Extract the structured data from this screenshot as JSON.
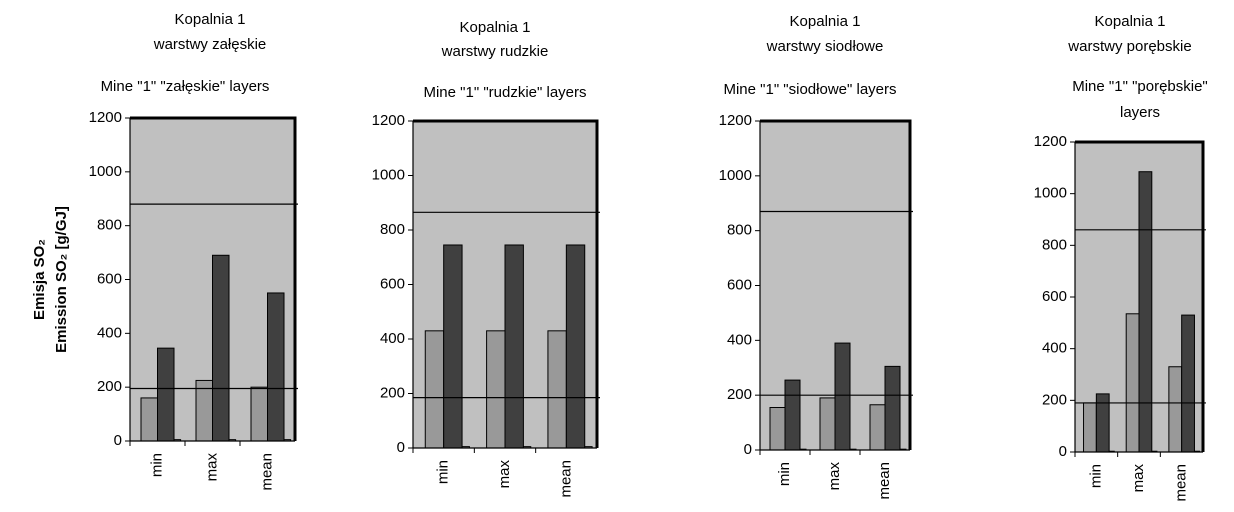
{
  "chart_data": [
    {
      "type": "bar",
      "title": "Kopalnia 1",
      "subtitle": "warstwy załęskie",
      "caption": [
        "Mine \"1\" \"załęskie\"   layers"
      ],
      "ylabel": [
        "Emisja SO₂",
        "Emission SO₂ [g/GJ]"
      ],
      "categories": [
        "min",
        "max",
        "mean"
      ],
      "series": [
        {
          "color": "#999999",
          "values": [
            160,
            225,
            200
          ]
        },
        {
          "color": "#404040",
          "values": [
            345,
            690,
            550
          ]
        },
        {
          "color": "#808080",
          "values": [
            5,
            5,
            5
          ]
        }
      ],
      "hlines": [
        880,
        195
      ],
      "ylim": [
        0,
        1200
      ],
      "yticks": [
        0,
        200,
        400,
        600,
        800,
        1000,
        1200
      ]
    },
    {
      "type": "bar",
      "title": "Kopalnia 1",
      "subtitle": "warstwy rudzkie",
      "caption": [
        "Mine \"1\" \"rudzkie\"  layers"
      ],
      "categories": [
        "min",
        "max",
        "mean"
      ],
      "series": [
        {
          "color": "#999999",
          "values": [
            430,
            430,
            430
          ]
        },
        {
          "color": "#404040",
          "values": [
            745,
            745,
            745
          ]
        },
        {
          "color": "#808080",
          "values": [
            5,
            5,
            5
          ]
        }
      ],
      "hlines": [
        865,
        185
      ],
      "ylim": [
        0,
        1200
      ],
      "yticks": [
        0,
        200,
        400,
        600,
        800,
        1000,
        1200
      ]
    },
    {
      "type": "bar",
      "title": "Kopalnia 1",
      "subtitle": "warstwy siodłowe",
      "caption": [
        "Mine \"1\" \"siodłowe\"  layers"
      ],
      "categories": [
        "min",
        "max",
        "mean"
      ],
      "series": [
        {
          "color": "#999999",
          "values": [
            155,
            190,
            165
          ]
        },
        {
          "color": "#404040",
          "values": [
            255,
            390,
            305
          ]
        },
        {
          "color": "#808080",
          "values": [
            3,
            3,
            3
          ]
        }
      ],
      "hlines": [
        870,
        200
      ],
      "ylim": [
        0,
        1200
      ],
      "yticks": [
        0,
        200,
        400,
        600,
        800,
        1000,
        1200
      ]
    },
    {
      "type": "bar",
      "title": "Kopalnia 1",
      "subtitle": "warstwy porębskie",
      "caption": [
        "Mine \"1\" \"porębskie\"",
        "layers"
      ],
      "categories": [
        "min",
        "max",
        "mean"
      ],
      "series": [
        {
          "color": "#999999",
          "values": [
            190,
            535,
            330
          ]
        },
        {
          "color": "#404040",
          "values": [
            225,
            1085,
            530
          ]
        },
        {
          "color": "#808080",
          "values": [
            3,
            3,
            3
          ]
        }
      ],
      "hlines": [
        860,
        190
      ],
      "ylim": [
        0,
        1200
      ],
      "yticks": [
        0,
        200,
        400,
        600,
        800,
        1000,
        1200
      ]
    }
  ]
}
